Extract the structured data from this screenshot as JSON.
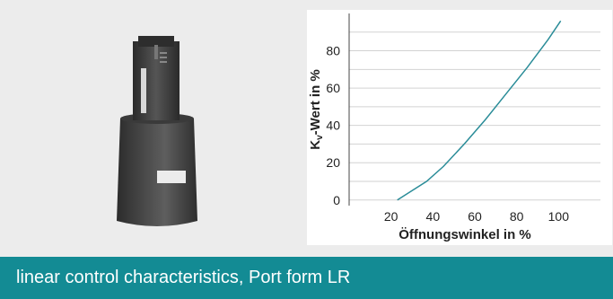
{
  "caption": {
    "text": "linear control characteristics, Port form  LR",
    "background_color": "#138b94",
    "text_color": "#ffffff"
  },
  "product_image": {
    "icon": "valve-insert-icon"
  },
  "chart_data": {
    "type": "line",
    "xlabel": "Öffnungswinkel in %",
    "ylabel_main": "K",
    "ylabel_sub": "v",
    "ylabel_rest": "-Wert in %",
    "x_ticks": [
      20,
      40,
      60,
      80,
      100
    ],
    "y_ticks": [
      0,
      20,
      40,
      60,
      80
    ],
    "xlim": [
      0,
      120
    ],
    "ylim": [
      -3,
      100
    ],
    "grid": "horizontal",
    "line_color": "#2a8c98",
    "series": [
      {
        "x": [
          23,
          30,
          37,
          45,
          55,
          65,
          75,
          85,
          95,
          101
        ],
        "y": [
          0,
          5,
          10,
          18,
          30,
          43,
          57,
          71,
          86,
          96
        ]
      }
    ]
  }
}
